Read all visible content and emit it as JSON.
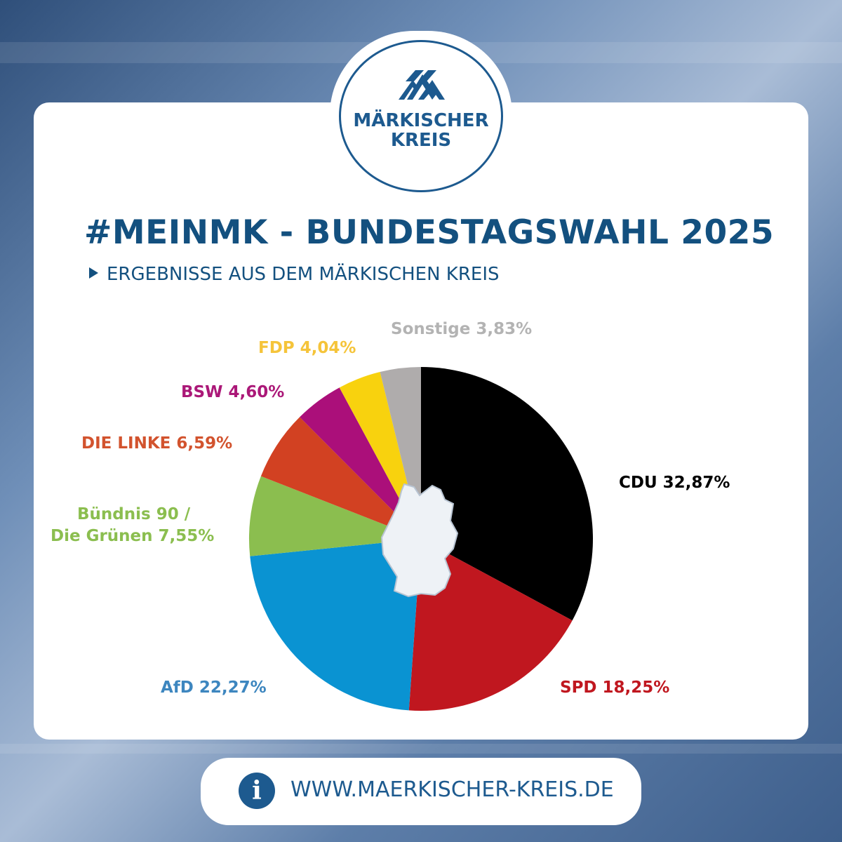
{
  "logo": {
    "line1": "MÄRKISCHER",
    "line2": "KREIS"
  },
  "header": {
    "title": "#MEINMK - BUNDESTAGSWAHL 2025",
    "subtitle": "ERGEBNISSE AUS DEM MÄRKISCHEN KREIS"
  },
  "chart_data": {
    "type": "pie",
    "title": "#MEINMK - BUNDESTAGSWAHL 2025",
    "subtitle": "ERGEBNISSE AUS DEM MÄRKISCHEN KREIS",
    "unit": "%",
    "slices": [
      {
        "label": "CDU 32,87%",
        "value": 32.87,
        "color": "#000000",
        "label_color": "#000000"
      },
      {
        "label": "SPD 18,25%",
        "value": 18.25,
        "color": "#c0171f",
        "label_color": "#c0171f"
      },
      {
        "label": "AfD 22,27%",
        "value": 22.27,
        "color": "#0a93d2",
        "label_color": "#3d86bf"
      },
      {
        "label_line1": "Bündnis 90 /",
        "label_line2": "Die Grünen 7,55%",
        "value": 7.55,
        "color": "#8bbe4f",
        "label_color": "#8bbe4f"
      },
      {
        "label": "DIE LINKE 6,59%",
        "value": 6.59,
        "color": "#d24122",
        "label_color": "#d2532e"
      },
      {
        "label": "BSW 4,60%",
        "value": 4.6,
        "color": "#ab0f7a",
        "label_color": "#ab1878"
      },
      {
        "label": "FDP 4,04%",
        "value": 4.04,
        "color": "#f8d20e",
        "label_color": "#f5c43a"
      },
      {
        "label": "Sonstige 3,83%",
        "value": 3.83,
        "color": "#afacac",
        "label_color": "#b3b3b3"
      }
    ]
  },
  "footer": {
    "icon": "info-icon",
    "icon_glyph": "i",
    "url": "WWW.MAERKISCHER-KREIS.DE"
  }
}
